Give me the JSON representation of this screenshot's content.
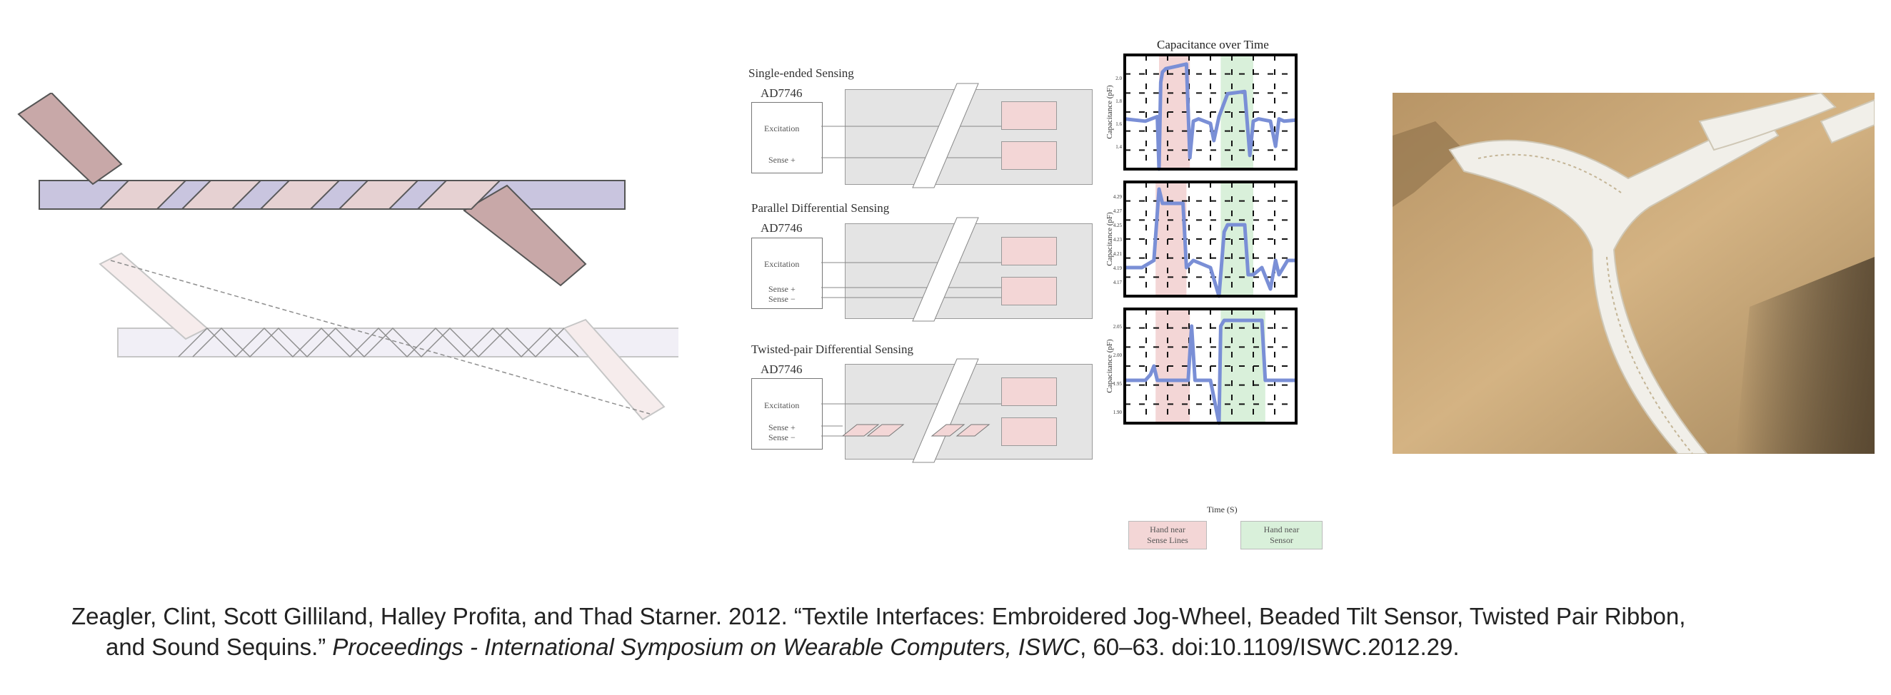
{
  "sensing": {
    "panels": [
      {
        "title": "Single-ended Sensing",
        "chip": "AD7746",
        "row1": "Excitation",
        "row2a": "Sense +",
        "row2b": ""
      },
      {
        "title": "Parallel Differential Sensing",
        "chip": "AD7746",
        "row1": "Excitation",
        "row2a": "Sense +",
        "row2b": "Sense −"
      },
      {
        "title": "Twisted-pair Differential Sensing",
        "chip": "AD7746",
        "row1": "Excitation",
        "row2a": "Sense +",
        "row2b": "Sense −"
      }
    ]
  },
  "chart": {
    "title": "Capacitance over Time",
    "ylabel": "Capacitance (pF)",
    "xlabel": "Time (S)",
    "legend": [
      {
        "label_line1": "Hand near",
        "label_line2": "Sense Lines",
        "color": "#f3d6d6"
      },
      {
        "label_line1": "Hand near",
        "label_line2": "Sensor",
        "color": "#d9f0da"
      }
    ]
  },
  "chart_data": [
    {
      "type": "line",
      "title": "Capacitance over Time",
      "xlabel": "",
      "ylabel": "Capacitance (pF)",
      "ylim": [
        1.2,
        2.2
      ],
      "yticks": [
        "1.4",
        "1.6",
        "1.8",
        "2.0"
      ],
      "shaded_regions": [
        {
          "x": [
            0.2,
            0.38
          ],
          "color": "#f3d6d6"
        },
        {
          "x": [
            0.56,
            0.75
          ],
          "color": "#d9f0da"
        }
      ],
      "series": [
        {
          "color": "#7a8fd6",
          "x": [
            0,
            0.12,
            0.19,
            0.2,
            0.21,
            0.22,
            0.24,
            0.36,
            0.38,
            0.4,
            0.43,
            0.5,
            0.52,
            0.55,
            0.6,
            0.7,
            0.73,
            0.75,
            0.78,
            0.85,
            0.88,
            0.9,
            0.93,
            1.0
          ],
          "y": [
            1.64,
            1.62,
            1.66,
            1.2,
            1.96,
            2.05,
            2.08,
            2.12,
            1.3,
            1.62,
            1.64,
            1.6,
            1.45,
            1.66,
            1.86,
            1.88,
            1.32,
            1.62,
            1.64,
            1.62,
            1.4,
            1.64,
            1.62,
            1.63
          ]
        }
      ]
    },
    {
      "type": "line",
      "xlabel": "",
      "ylabel": "Capacitance (pF)",
      "ylim": [
        4.15,
        4.31
      ],
      "yticks": [
        "4.17",
        "4.19",
        "4.21",
        "4.23",
        "4.25",
        "4.27",
        "4.29"
      ],
      "shaded_regions": [
        {
          "x": [
            0.18,
            0.36
          ],
          "color": "#f3d6d6"
        },
        {
          "x": [
            0.56,
            0.75
          ],
          "color": "#d9f0da"
        }
      ],
      "series": [
        {
          "color": "#7a8fd6",
          "x": [
            0,
            0.1,
            0.17,
            0.2,
            0.22,
            0.34,
            0.36,
            0.4,
            0.5,
            0.55,
            0.58,
            0.6,
            0.7,
            0.72,
            0.75,
            0.8,
            0.85,
            0.88,
            0.9,
            0.95,
            1.0
          ],
          "y": [
            4.19,
            4.19,
            4.2,
            4.3,
            4.28,
            4.28,
            4.19,
            4.2,
            4.19,
            4.15,
            4.24,
            4.25,
            4.25,
            4.18,
            4.18,
            4.19,
            4.16,
            4.2,
            4.18,
            4.2,
            4.2
          ]
        }
      ]
    },
    {
      "type": "line",
      "xlabel": "Time (S)",
      "ylabel": "Capacitance (pF)",
      "ylim": [
        1.88,
        2.08
      ],
      "yticks": [
        "1.90",
        "1.95",
        "2.00",
        "2.05"
      ],
      "shaded_regions": [
        {
          "x": [
            0.18,
            0.38
          ],
          "color": "#f3d6d6"
        },
        {
          "x": [
            0.56,
            0.82
          ],
          "color": "#d9f0da"
        }
      ],
      "series": [
        {
          "color": "#7a8fd6",
          "x": [
            0,
            0.12,
            0.15,
            0.17,
            0.19,
            0.3,
            0.37,
            0.39,
            0.41,
            0.5,
            0.55,
            0.56,
            0.58,
            0.65,
            0.8,
            0.82,
            0.84,
            0.9,
            0.95,
            1.0
          ],
          "y": [
            1.955,
            1.955,
            1.965,
            1.98,
            1.955,
            1.955,
            1.955,
            2.05,
            1.955,
            1.955,
            1.88,
            2.05,
            2.06,
            2.06,
            2.06,
            1.955,
            1.955,
            1.955,
            1.955,
            1.955
          ]
        }
      ]
    }
  ],
  "citation": {
    "line1": "Zeagler, Clint, Scott Gilliland, Halley Profita, and Thad Starner. 2012. “Textile Interfaces: Embroidered Jog-Wheel, Beaded Tilt Sensor, Twisted Pair Ribbon,",
    "line2_plain": "and Sound Sequins.” ",
    "line2_italic": "Proceedings - International Symposium on Wearable Computers, ISWC",
    "line2_tail": ", 60–63. doi:10.1109/ISWC.2012.29."
  }
}
